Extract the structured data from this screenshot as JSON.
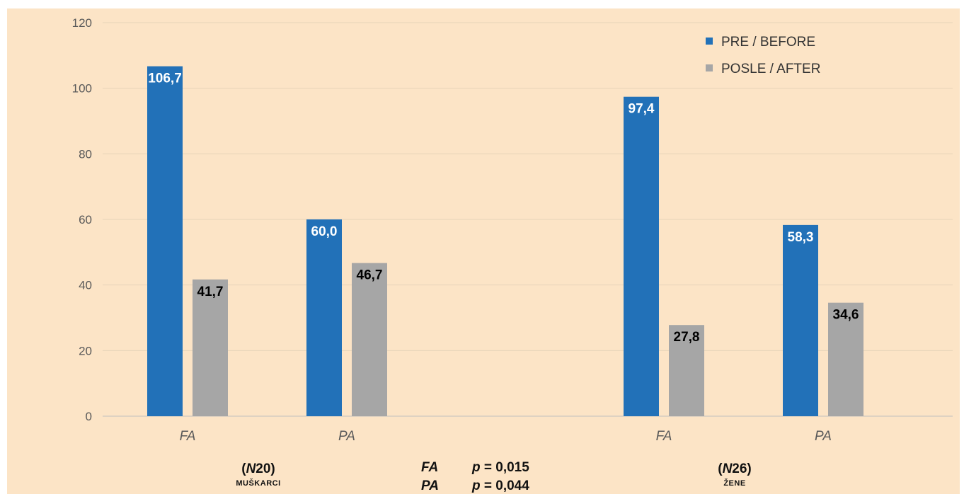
{
  "chart_data": {
    "type": "bar",
    "categories": [
      "FA",
      "PA",
      "FA",
      "PA"
    ],
    "series": [
      {
        "name": "PRE / BEFORE",
        "values": [
          106.7,
          60.0,
          97.4,
          58.3
        ],
        "labels": [
          "106,7",
          "60,0",
          "97,4",
          "58,3"
        ],
        "color": "#2271b8",
        "label_color": "#ffffff"
      },
      {
        "name": "POSLE / AFTER",
        "values": [
          41.7,
          46.7,
          27.8,
          34.6
        ],
        "labels": [
          "41,7",
          "46,7",
          "27,8",
          "34,6"
        ],
        "color": "#a6a6a6",
        "label_color": "#000000"
      }
    ],
    "ylim": [
      0,
      120
    ],
    "yticks": [
      0,
      20,
      40,
      60,
      80,
      100,
      120
    ],
    "grid": true,
    "legend": "top-right",
    "groups": [
      {
        "n_prefix": "(",
        "n_letter": "N",
        "n_value": "20)",
        "label": "MUŠKARCI"
      },
      {
        "n_prefix": "(",
        "n_letter": "N",
        "n_value": "26)",
        "label": "ŽENE"
      }
    ],
    "annotations": [
      {
        "label": "FA",
        "p_letter": "p",
        "p_text": " = 0,015"
      },
      {
        "label": "PA",
        "p_letter": "p",
        "p_text": " = 0,044"
      }
    ]
  }
}
